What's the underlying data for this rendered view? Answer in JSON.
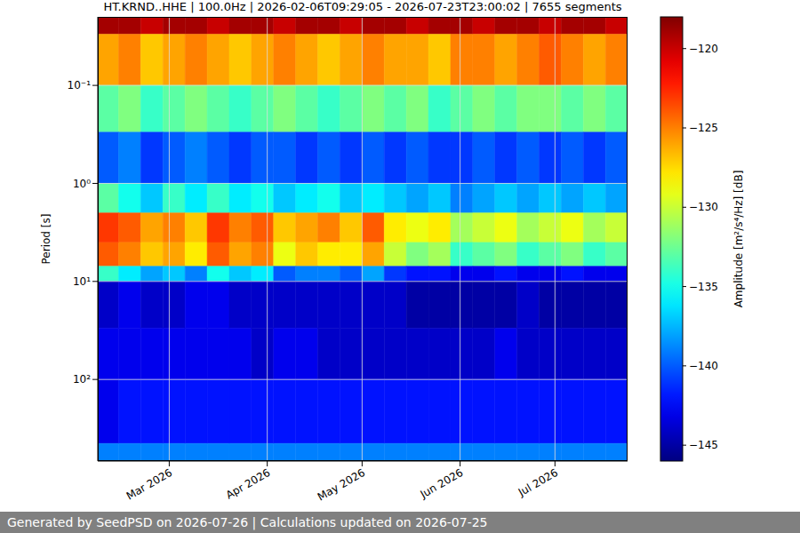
{
  "chart_data": {
    "type": "heatmap",
    "title": "HT.KRND..HHE | 100.0Hz | 2026-02-06T09:29:05 - 2026-07-23T23:00:02 | 7655 segments",
    "ylabel": "Period [s]",
    "colorbar_label": "Amplitude [m²/s⁴/Hz] [dB]",
    "footer": "Generated by SeedPSD on 2026-07-26 | Calculations updated on 2026-07-25",
    "log": "y",
    "grid": true,
    "xlim": [
      "2026-02-06T09:29:05",
      "2026-07-23T23:00:02"
    ],
    "xticks": [
      {
        "value": "2026-03-01",
        "label": "Mar 2026"
      },
      {
        "value": "2026-04-01",
        "label": "Apr 2026"
      },
      {
        "value": "2026-05-01",
        "label": "May 2026"
      },
      {
        "value": "2026-06-01",
        "label": "Jun 2026"
      },
      {
        "value": "2026-07-01",
        "label": "Jul 2026"
      }
    ],
    "ylim": [
      0.02,
      680
    ],
    "yticks": [
      {
        "value": 0.1,
        "label": "10⁻¹"
      },
      {
        "value": 1,
        "label": "10⁰"
      },
      {
        "value": 10,
        "label": "10¹"
      },
      {
        "value": 100,
        "label": "10²"
      }
    ],
    "zlim": [
      -146,
      -118
    ],
    "zticks": [
      -145,
      -140,
      -135,
      -130,
      -125,
      -120
    ],
    "x_edges": [
      "2026-02-06",
      "2026-02-13",
      "2026-02-20",
      "2026-02-27",
      "2026-03-06",
      "2026-03-13",
      "2026-03-20",
      "2026-03-27",
      "2026-04-03",
      "2026-04-10",
      "2026-04-17",
      "2026-04-24",
      "2026-05-01",
      "2026-05-08",
      "2026-05-15",
      "2026-05-22",
      "2026-05-29",
      "2026-06-05",
      "2026-06-12",
      "2026-06-19",
      "2026-06-26",
      "2026-07-03",
      "2026-07-10",
      "2026-07-17",
      "2026-07-24"
    ],
    "y_edges": [
      0.02,
      0.03,
      0.1,
      0.3,
      1,
      2,
      4,
      7,
      10,
      30,
      100,
      450,
      680
    ],
    "z": [
      [
        -119,
        -119,
        -120,
        -119,
        -119,
        -120,
        -119,
        -119,
        -120,
        -119,
        -119,
        -120,
        -119,
        -119,
        -120,
        -119,
        -119,
        -120,
        -119,
        -119,
        -120,
        -119,
        -119,
        -120
      ],
      [
        -126,
        -125,
        -127,
        -126,
        -125,
        -126,
        -127,
        -126,
        -125,
        -126,
        -127,
        -126,
        -125,
        -126,
        -126,
        -127,
        -125,
        -125,
        -126,
        -125,
        -124,
        -125,
        -126,
        -125
      ],
      [
        -133,
        -132,
        -134,
        -133,
        -132,
        -133,
        -134,
        -133,
        -132,
        -133,
        -134,
        -133,
        -132,
        -133,
        -132,
        -134,
        -133,
        -132,
        -133,
        -132,
        -132,
        -133,
        -132,
        -133
      ],
      [
        -140,
        -139,
        -141,
        -140,
        -139,
        -140,
        -141,
        -140,
        -140,
        -141,
        -140,
        -141,
        -140,
        -141,
        -140,
        -141,
        -141,
        -140,
        -141,
        -140,
        -141,
        -140,
        -141,
        -140
      ],
      [
        -133,
        -135,
        -137,
        -134,
        -136,
        -134,
        -136,
        -135,
        -137,
        -136,
        -135,
        -137,
        -136,
        -137,
        -138,
        -137,
        -139,
        -138,
        -137,
        -138,
        -137,
        -138,
        -137,
        -138
      ],
      [
        -123,
        -124,
        -126,
        -125,
        -127,
        -123,
        -125,
        -124,
        -127,
        -126,
        -125,
        -127,
        -124,
        -128,
        -129,
        -128,
        -131,
        -130,
        -129,
        -131,
        -130,
        -129,
        -131,
        -130
      ],
      [
        -124,
        -125,
        -127,
        -126,
        -128,
        -124,
        -126,
        -125,
        -129,
        -127,
        -128,
        -128,
        -126,
        -130,
        -132,
        -131,
        -134,
        -133,
        -132,
        -134,
        -133,
        -132,
        -134,
        -133
      ],
      [
        -134,
        -136,
        -138,
        -137,
        -139,
        -135,
        -137,
        -136,
        -140,
        -139,
        -139,
        -140,
        -138,
        -141,
        -142,
        -142,
        -143,
        -143,
        -142,
        -143,
        -143,
        -142,
        -143,
        -143
      ],
      [
        -144,
        -143,
        -144,
        -144,
        -143,
        -143,
        -144,
        -144,
        -144,
        -144,
        -144,
        -144,
        -144,
        -144,
        -145,
        -145,
        -145,
        -145,
        -145,
        -144,
        -145,
        -145,
        -145,
        -145
      ],
      [
        -143,
        -143,
        -143,
        -143,
        -143,
        -143,
        -143,
        -144,
        -143,
        -143,
        -144,
        -144,
        -144,
        -144,
        -144,
        -144,
        -144,
        -144,
        -143,
        -144,
        -144,
        -144,
        -144,
        -144
      ],
      [
        -143,
        -142,
        -142,
        -142,
        -142,
        -142,
        -142,
        -142,
        -142,
        -142,
        -142,
        -142,
        -142,
        -142,
        -142,
        -142,
        -142,
        -142,
        -142,
        -142,
        -142,
        -142,
        -142,
        -142
      ],
      [
        -139,
        -139,
        -139,
        -139,
        -139,
        -139,
        -139,
        -139,
        -139,
        -139,
        -139,
        -139,
        -139,
        -139,
        -139,
        -139,
        -139,
        -139,
        -139,
        -139,
        -139,
        -139,
        -139,
        -139
      ]
    ]
  }
}
